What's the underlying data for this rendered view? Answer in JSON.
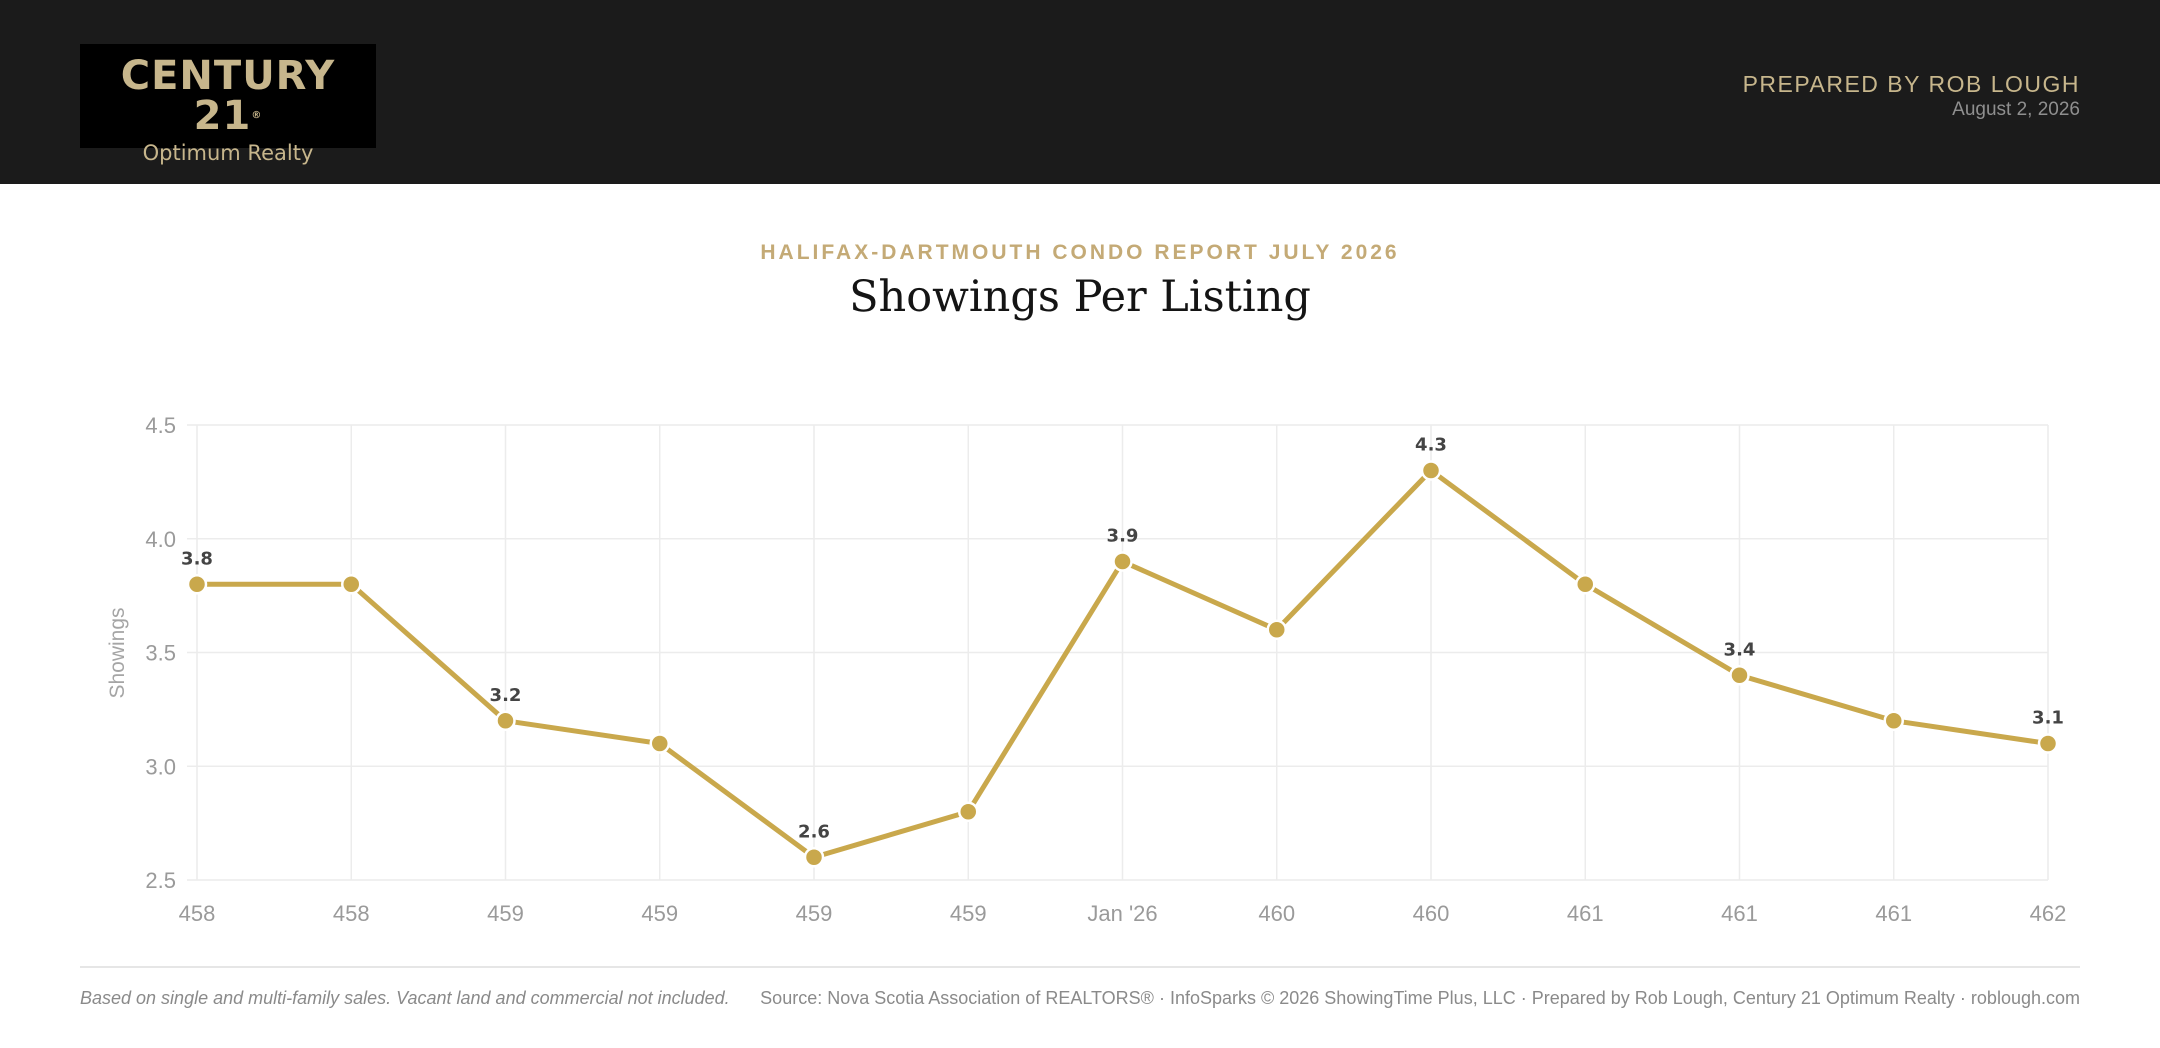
{
  "header": {
    "logo_main": "CENTURY 21",
    "logo_reg": "®",
    "logo_sub": "Optimum Realty",
    "prepared_by": "PREPARED BY ROB LOUGH",
    "date": "August 2, 2026"
  },
  "report": {
    "label": "HALIFAX-DARTMOUTH CONDO REPORT JULY 2026",
    "title": "Showings Per Listing"
  },
  "footer": {
    "note": "Based on single and multi-family sales. Vacant land and commercial not included.",
    "source": "Source: Nova Scotia Association of REALTORS® · InfoSparks © 2026 ShowingTime Plus, LLC · Prepared by Rob Lough, Century 21 Optimum Realty · roblough.com"
  },
  "colors": {
    "accent": "#c9a84c",
    "header_bg": "#1b1b1b",
    "gold_text": "#c7b68c"
  },
  "chart_data": {
    "type": "line",
    "ylabel": "Showings",
    "xlabel": "",
    "ylim": [
      2.5,
      4.5
    ],
    "yticks": [
      "4.5",
      "4.0",
      "3.5",
      "3.0",
      "2.5"
    ],
    "ytick_values": [
      4.5,
      4.0,
      3.5,
      3.0,
      2.5
    ],
    "categories": [
      "458",
      "458",
      "459",
      "459",
      "459",
      "459",
      "Jan '26",
      "460",
      "460",
      "461",
      "461",
      "461",
      "462"
    ],
    "values": [
      3.8,
      3.8,
      3.2,
      3.1,
      2.6,
      2.8,
      3.9,
      3.6,
      4.3,
      3.8,
      3.4,
      3.2,
      3.1
    ],
    "data_labels": [
      "3.8",
      "",
      "3.2",
      "",
      "2.6",
      "",
      "3.9",
      "",
      "4.3",
      "",
      "3.4",
      "",
      "3.1"
    ],
    "grid": true,
    "legend": "none"
  }
}
